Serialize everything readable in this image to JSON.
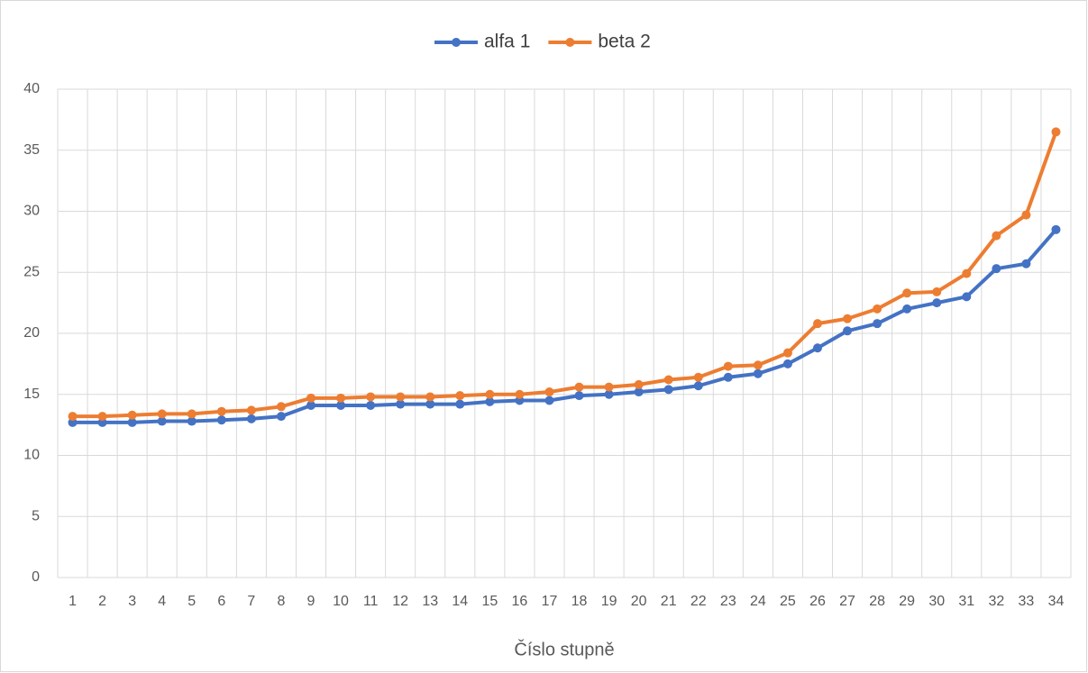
{
  "chart_data": {
    "type": "line",
    "x_label": "Číslo stupně",
    "categories": [
      "1",
      "2",
      "3",
      "4",
      "5",
      "6",
      "7",
      "8",
      "9",
      "10",
      "11",
      "12",
      "13",
      "14",
      "15",
      "16",
      "17",
      "18",
      "19",
      "20",
      "21",
      "22",
      "23",
      "24",
      "25",
      "26",
      "27",
      "28",
      "29",
      "30",
      "31",
      "32",
      "33",
      "34"
    ],
    "series": [
      {
        "name": "alfa 1",
        "color": "#4472c4",
        "values": [
          12.7,
          12.7,
          12.7,
          12.8,
          12.8,
          12.9,
          13.0,
          13.2,
          14.1,
          14.1,
          14.1,
          14.2,
          14.2,
          14.2,
          14.4,
          14.5,
          14.5,
          14.9,
          15.0,
          15.2,
          15.4,
          15.7,
          16.4,
          16.7,
          17.5,
          18.8,
          20.2,
          20.8,
          22.0,
          22.5,
          23.0,
          25.3,
          25.7,
          28.5
        ]
      },
      {
        "name": "beta 2",
        "color": "#ed7d31",
        "values": [
          13.2,
          13.2,
          13.3,
          13.4,
          13.4,
          13.6,
          13.7,
          14.0,
          14.7,
          14.7,
          14.8,
          14.8,
          14.8,
          14.9,
          15.0,
          15.0,
          15.2,
          15.6,
          15.6,
          15.8,
          16.2,
          16.4,
          17.3,
          17.4,
          18.4,
          20.8,
          21.2,
          22.0,
          23.3,
          23.4,
          24.9,
          28.0,
          29.7,
          36.5
        ]
      }
    ],
    "ylim": [
      0,
      40
    ],
    "yticks": [
      0,
      5,
      10,
      15,
      20,
      25,
      30,
      35,
      40
    ],
    "grid": true,
    "legend": "top"
  }
}
